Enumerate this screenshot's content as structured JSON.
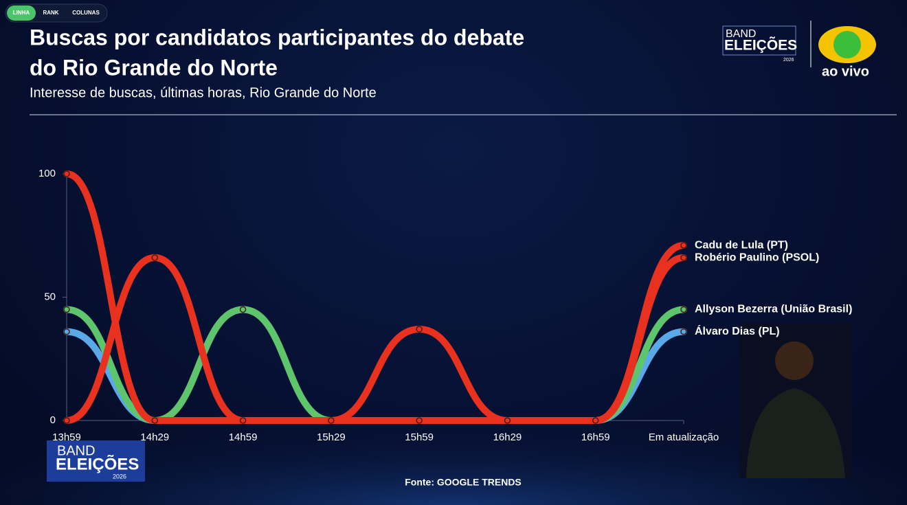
{
  "tabs": [
    "LINHA",
    "RANK",
    "COLUNAS"
  ],
  "branding": {
    "band": "BAND",
    "eleicoes": "ELEIÇÕES",
    "year": "2026",
    "live": "ao vivo"
  },
  "chart_data": {
    "type": "line",
    "title": "Buscas por candidatos participantes do debate",
    "title_line2": "do Rio Grande do Norte",
    "subtitle": "Interesse de buscas, últimas horas, Rio Grande do Norte",
    "source": "Fonte: GOOGLE TRENDS",
    "categories": [
      "13h59",
      "14h29",
      "14h59",
      "15h29",
      "15h59",
      "16h29",
      "16h59",
      "Em atualização"
    ],
    "series": [
      {
        "name": "Cadu de Lula (PT)",
        "color": "#e8311f",
        "values": [
          100,
          0,
          0,
          0,
          0,
          0,
          0,
          71
        ]
      },
      {
        "name": "Robério Paulino (PSOL)",
        "color": "#e8311f",
        "values": [
          0,
          66,
          0,
          0,
          37,
          0,
          0,
          66
        ]
      },
      {
        "name": "Allyson Bezerra (União Brasil)",
        "color": "#5fc56c",
        "values": [
          45,
          0,
          45,
          0,
          0,
          0,
          0,
          45
        ]
      },
      {
        "name": "Álvaro Dias (PL)",
        "color": "#5aa8e8",
        "values": [
          36,
          0,
          0,
          0,
          0,
          0,
          0,
          36
        ]
      }
    ],
    "ylim": [
      0,
      100
    ],
    "yticks": [
      0,
      50,
      100
    ],
    "grid": false
  }
}
